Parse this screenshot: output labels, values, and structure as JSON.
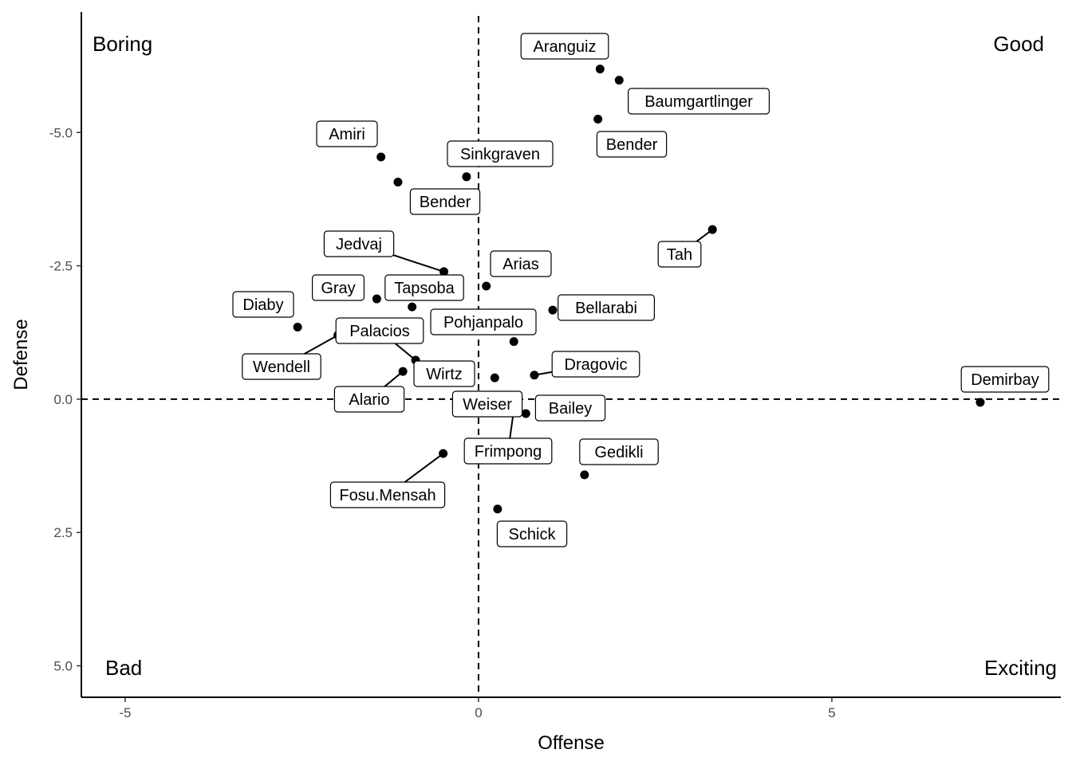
{
  "chart_data": {
    "type": "scatter",
    "xlabel": "Offense",
    "ylabel": "Defense",
    "xlim": [
      -5.62,
      8.24
    ],
    "ylim": [
      -7.26,
      5.59
    ],
    "y_reversed": true,
    "xticks": [
      -5,
      0,
      5
    ],
    "xtick_labels": [
      "-5",
      "0",
      "5"
    ],
    "yticks": [
      -5,
      -2.5,
      0,
      2.5,
      5
    ],
    "ytick_labels": [
      "-5.0",
      "-2.5",
      "0.0",
      "2.5",
      "5.0"
    ],
    "reference_lines": {
      "x": 0,
      "y": 0,
      "style": "dashed"
    },
    "quadrant_labels": {
      "top_left": "Boring",
      "top_right": "Good",
      "bottom_left": "Bad",
      "bottom_right": "Exciting"
    },
    "grid": false,
    "points": [
      {
        "name": "Aranguiz",
        "x": 1.72,
        "y": -6.19
      },
      {
        "name": "Baumgartlinger",
        "x": 1.99,
        "y": -5.98
      },
      {
        "name": "Bender",
        "x": 1.69,
        "y": -5.25
      },
      {
        "name": "Amiri",
        "x": -1.38,
        "y": -4.54
      },
      {
        "name": "Sinkgraven",
        "x": -0.17,
        "y": -4.17
      },
      {
        "name": "Bender",
        "x": -1.14,
        "y": -4.07
      },
      {
        "name": "Tah",
        "x": 3.31,
        "y": -3.18
      },
      {
        "name": "Jedvaj",
        "x": -0.49,
        "y": -2.39
      },
      {
        "name": "Arias",
        "x": 0.11,
        "y": -2.12
      },
      {
        "name": "Gray",
        "x": -1.44,
        "y": -1.88
      },
      {
        "name": "Tapsoba",
        "x": -0.94,
        "y": -1.73
      },
      {
        "name": "Bellarabi",
        "x": 1.05,
        "y": -1.67
      },
      {
        "name": "Diaby",
        "x": -2.56,
        "y": -1.35
      },
      {
        "name": "Pohjanpalo",
        "x": 0.5,
        "y": -1.08
      },
      {
        "name": "Palacios",
        "x": -0.89,
        "y": -0.73
      },
      {
        "name": "Wendell",
        "x": -1.99,
        "y": -1.2
      },
      {
        "name": "Dragovic",
        "x": 0.79,
        "y": -0.45
      },
      {
        "name": "Wirtz",
        "x": 0.23,
        "y": -0.4
      },
      {
        "name": "Alario",
        "x": -1.07,
        "y": -0.52
      },
      {
        "name": "Weiser",
        "x": 0.05,
        "y": 0.05
      },
      {
        "name": "Bailey",
        "x": 0.67,
        "y": 0.27
      },
      {
        "name": "Frimpong",
        "x": 0.5,
        "y": 0.2
      },
      {
        "name": "Demirbay",
        "x": 7.1,
        "y": 0.06
      },
      {
        "name": "Gedikli",
        "x": 1.5,
        "y": 1.42
      },
      {
        "name": "Fosu.Mensah",
        "x": -0.5,
        "y": 1.02
      },
      {
        "name": "Schick",
        "x": 0.27,
        "y": 2.06
      }
    ]
  }
}
